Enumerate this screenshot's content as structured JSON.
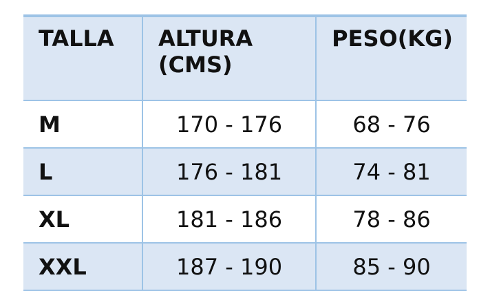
{
  "table": {
    "header": [
      "TALLA",
      "ALTURA (CMS)",
      "PESO(KG)"
    ],
    "rows": [
      [
        "M",
        "170 - 176",
        "68 - 76"
      ],
      [
        "L",
        "176 - 181",
        "74 - 81"
      ],
      [
        "XL",
        "181 - 186",
        "78 - 86"
      ],
      [
        "XXL",
        "187 - 190",
        "85 - 90"
      ]
    ]
  }
}
